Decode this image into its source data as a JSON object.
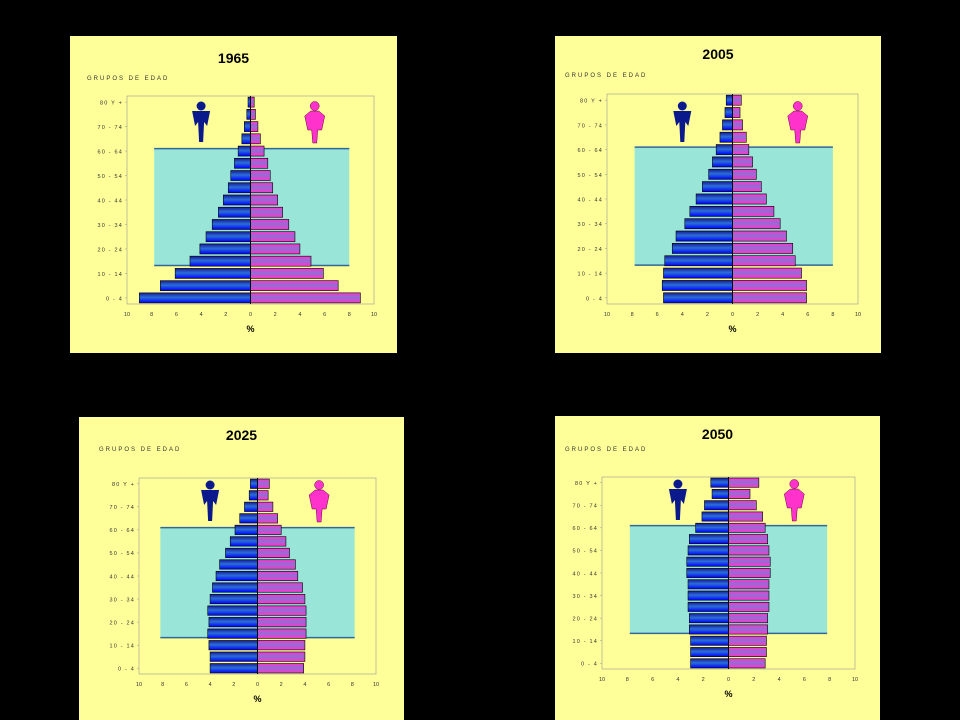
{
  "colors": {
    "background": "#000000",
    "panel": "#ffff99",
    "working_age_box": "#99e6d9",
    "working_age_border": "#336699",
    "male_icon": "#0a1a8c",
    "female_icon": "#ff33cc"
  },
  "chart_data": [
    {
      "type": "bar",
      "title": "1965",
      "ylabel": "GRUPOS DE EDAD",
      "xlabel": "%",
      "xlim": [
        -10,
        10
      ],
      "xticks": [
        "10",
        "8",
        "6",
        "4",
        "2",
        "0",
        "2",
        "4",
        "6",
        "8",
        "10"
      ],
      "categories": [
        "0 - 4",
        "5 - 9",
        "10 - 14",
        "15 - 19",
        "20 - 24",
        "25 - 29",
        "30 - 34",
        "35 - 39",
        "40 - 44",
        "45 - 49",
        "50 - 54",
        "55 - 59",
        "60 - 64",
        "65 - 69",
        "70 - 74",
        "75 - 79",
        "80 Y +"
      ],
      "tick_labels": [
        "0 - 4",
        "",
        "10 - 14",
        "",
        "20 - 24",
        "",
        "30 - 34",
        "",
        "40 - 44",
        "",
        "50 - 54",
        "",
        "60 - 64",
        "",
        "70 - 74",
        "",
        "80 Y +"
      ],
      "series": [
        {
          "name": "male",
          "values": [
            9.0,
            7.3,
            6.1,
            4.9,
            4.1,
            3.6,
            3.1,
            2.6,
            2.2,
            1.8,
            1.6,
            1.3,
            1.0,
            0.7,
            0.5,
            0.3,
            0.2
          ]
        },
        {
          "name": "female",
          "values": [
            8.9,
            7.1,
            5.9,
            4.9,
            4.0,
            3.6,
            3.1,
            2.6,
            2.2,
            1.8,
            1.6,
            1.4,
            1.1,
            0.8,
            0.6,
            0.4,
            0.3
          ]
        }
      ],
      "working_age_band": [
        "15 - 19",
        "60 - 64"
      ],
      "box_x_range": [
        -7.8,
        8.0
      ]
    },
    {
      "type": "bar",
      "title": "2005",
      "ylabel": "GRUPOS DE EDAD",
      "xlabel": "%",
      "xlim": [
        -10,
        10
      ],
      "xticks": [
        "10",
        "8",
        "6",
        "4",
        "2",
        "0",
        "2",
        "4",
        "6",
        "8",
        "10"
      ],
      "categories": [
        "0 - 4",
        "5 - 9",
        "10 - 14",
        "15 - 19",
        "20 - 24",
        "25 - 29",
        "30 - 34",
        "35 - 39",
        "40 - 44",
        "45 - 49",
        "50 - 54",
        "55 - 59",
        "60 - 64",
        "65 - 69",
        "70 - 74",
        "75 - 79",
        "80 Y +"
      ],
      "tick_labels": [
        "0 - 4",
        "",
        "10 - 14",
        "",
        "20 - 24",
        "",
        "30 - 34",
        "",
        "40 - 44",
        "",
        "50 - 54",
        "",
        "60 - 64",
        "",
        "70 - 74",
        "",
        "80 Y +"
      ],
      "series": [
        {
          "name": "male",
          "values": [
            5.5,
            5.6,
            5.5,
            5.4,
            4.8,
            4.5,
            3.8,
            3.4,
            2.9,
            2.4,
            1.9,
            1.6,
            1.3,
            1.0,
            0.8,
            0.6,
            0.5
          ]
        },
        {
          "name": "female",
          "values": [
            5.9,
            5.9,
            5.5,
            5.0,
            4.8,
            4.3,
            3.8,
            3.3,
            2.7,
            2.3,
            1.9,
            1.6,
            1.3,
            1.1,
            0.8,
            0.6,
            0.7
          ]
        }
      ],
      "working_age_band": [
        "15 - 19",
        "60 - 64"
      ],
      "box_x_range": [
        -7.8,
        8.0
      ]
    },
    {
      "type": "bar",
      "title": "2025",
      "ylabel": "GRUPOS DE EDAD",
      "xlabel": "%",
      "xlim": [
        -10,
        10
      ],
      "xticks": [
        "10",
        "8",
        "6",
        "4",
        "2",
        "0",
        "2",
        "4",
        "6",
        "8",
        "10"
      ],
      "categories": [
        "0 - 4",
        "5 - 9",
        "10 - 14",
        "15 - 19",
        "20 - 24",
        "25 - 29",
        "30 - 34",
        "35 - 39",
        "40 - 44",
        "45 - 49",
        "50 - 54",
        "55 - 59",
        "60 - 64",
        "65 - 69",
        "70 - 74",
        "75 - 79",
        "80 Y +"
      ],
      "tick_labels": [
        "0 - 4",
        "",
        "10 - 14",
        "",
        "20 - 24",
        "",
        "30 - 34",
        "",
        "40 - 44",
        "",
        "50 - 54",
        "",
        "60 - 64",
        "",
        "70 - 74",
        "",
        "80 Y +"
      ],
      "series": [
        {
          "name": "male",
          "values": [
            4.0,
            4.0,
            4.1,
            4.2,
            4.1,
            4.2,
            4.0,
            3.8,
            3.5,
            3.2,
            2.7,
            2.3,
            1.9,
            1.5,
            1.1,
            0.7,
            0.6
          ]
        },
        {
          "name": "female",
          "values": [
            3.9,
            4.0,
            4.0,
            4.1,
            4.1,
            4.1,
            4.0,
            3.8,
            3.4,
            3.2,
            2.7,
            2.4,
            2.0,
            1.7,
            1.3,
            0.9,
            1.0
          ]
        }
      ],
      "working_age_band": [
        "15 - 19",
        "60 - 64"
      ],
      "box_x_range": [
        -8.2,
        8.2
      ]
    },
    {
      "type": "bar",
      "title": "2050",
      "ylabel": "GRUPOS DE EDAD",
      "xlabel": "%",
      "xlim": [
        -10,
        10
      ],
      "xticks": [
        "10",
        "8",
        "6",
        "4",
        "2",
        "0",
        "2",
        "4",
        "6",
        "8",
        "10"
      ],
      "categories": [
        "0 - 4",
        "5 - 9",
        "10 - 14",
        "15 - 19",
        "20 - 24",
        "25 - 29",
        "30 - 34",
        "35 - 39",
        "40 - 44",
        "45 - 49",
        "50 - 54",
        "55 - 59",
        "60 - 64",
        "65 - 69",
        "70 - 74",
        "75 - 79",
        "80 Y +"
      ],
      "tick_labels": [
        "0 - 4",
        "",
        "10 - 14",
        "",
        "20 - 24",
        "",
        "30 - 34",
        "",
        "40 - 44",
        "",
        "50 - 54",
        "",
        "60 - 64",
        "",
        "70 - 74",
        "",
        "80 Y +"
      ],
      "series": [
        {
          "name": "male",
          "values": [
            3.0,
            3.0,
            3.0,
            3.1,
            3.1,
            3.2,
            3.2,
            3.2,
            3.3,
            3.3,
            3.2,
            3.1,
            2.6,
            2.1,
            1.9,
            1.3,
            1.4
          ]
        },
        {
          "name": "female",
          "values": [
            2.9,
            3.0,
            3.0,
            3.1,
            3.1,
            3.2,
            3.2,
            3.2,
            3.3,
            3.3,
            3.2,
            3.1,
            2.9,
            2.7,
            2.2,
            1.7,
            2.4
          ]
        }
      ],
      "working_age_band": [
        "15 - 19",
        "60 - 64"
      ],
      "box_x_range": [
        -7.8,
        7.8
      ]
    }
  ]
}
